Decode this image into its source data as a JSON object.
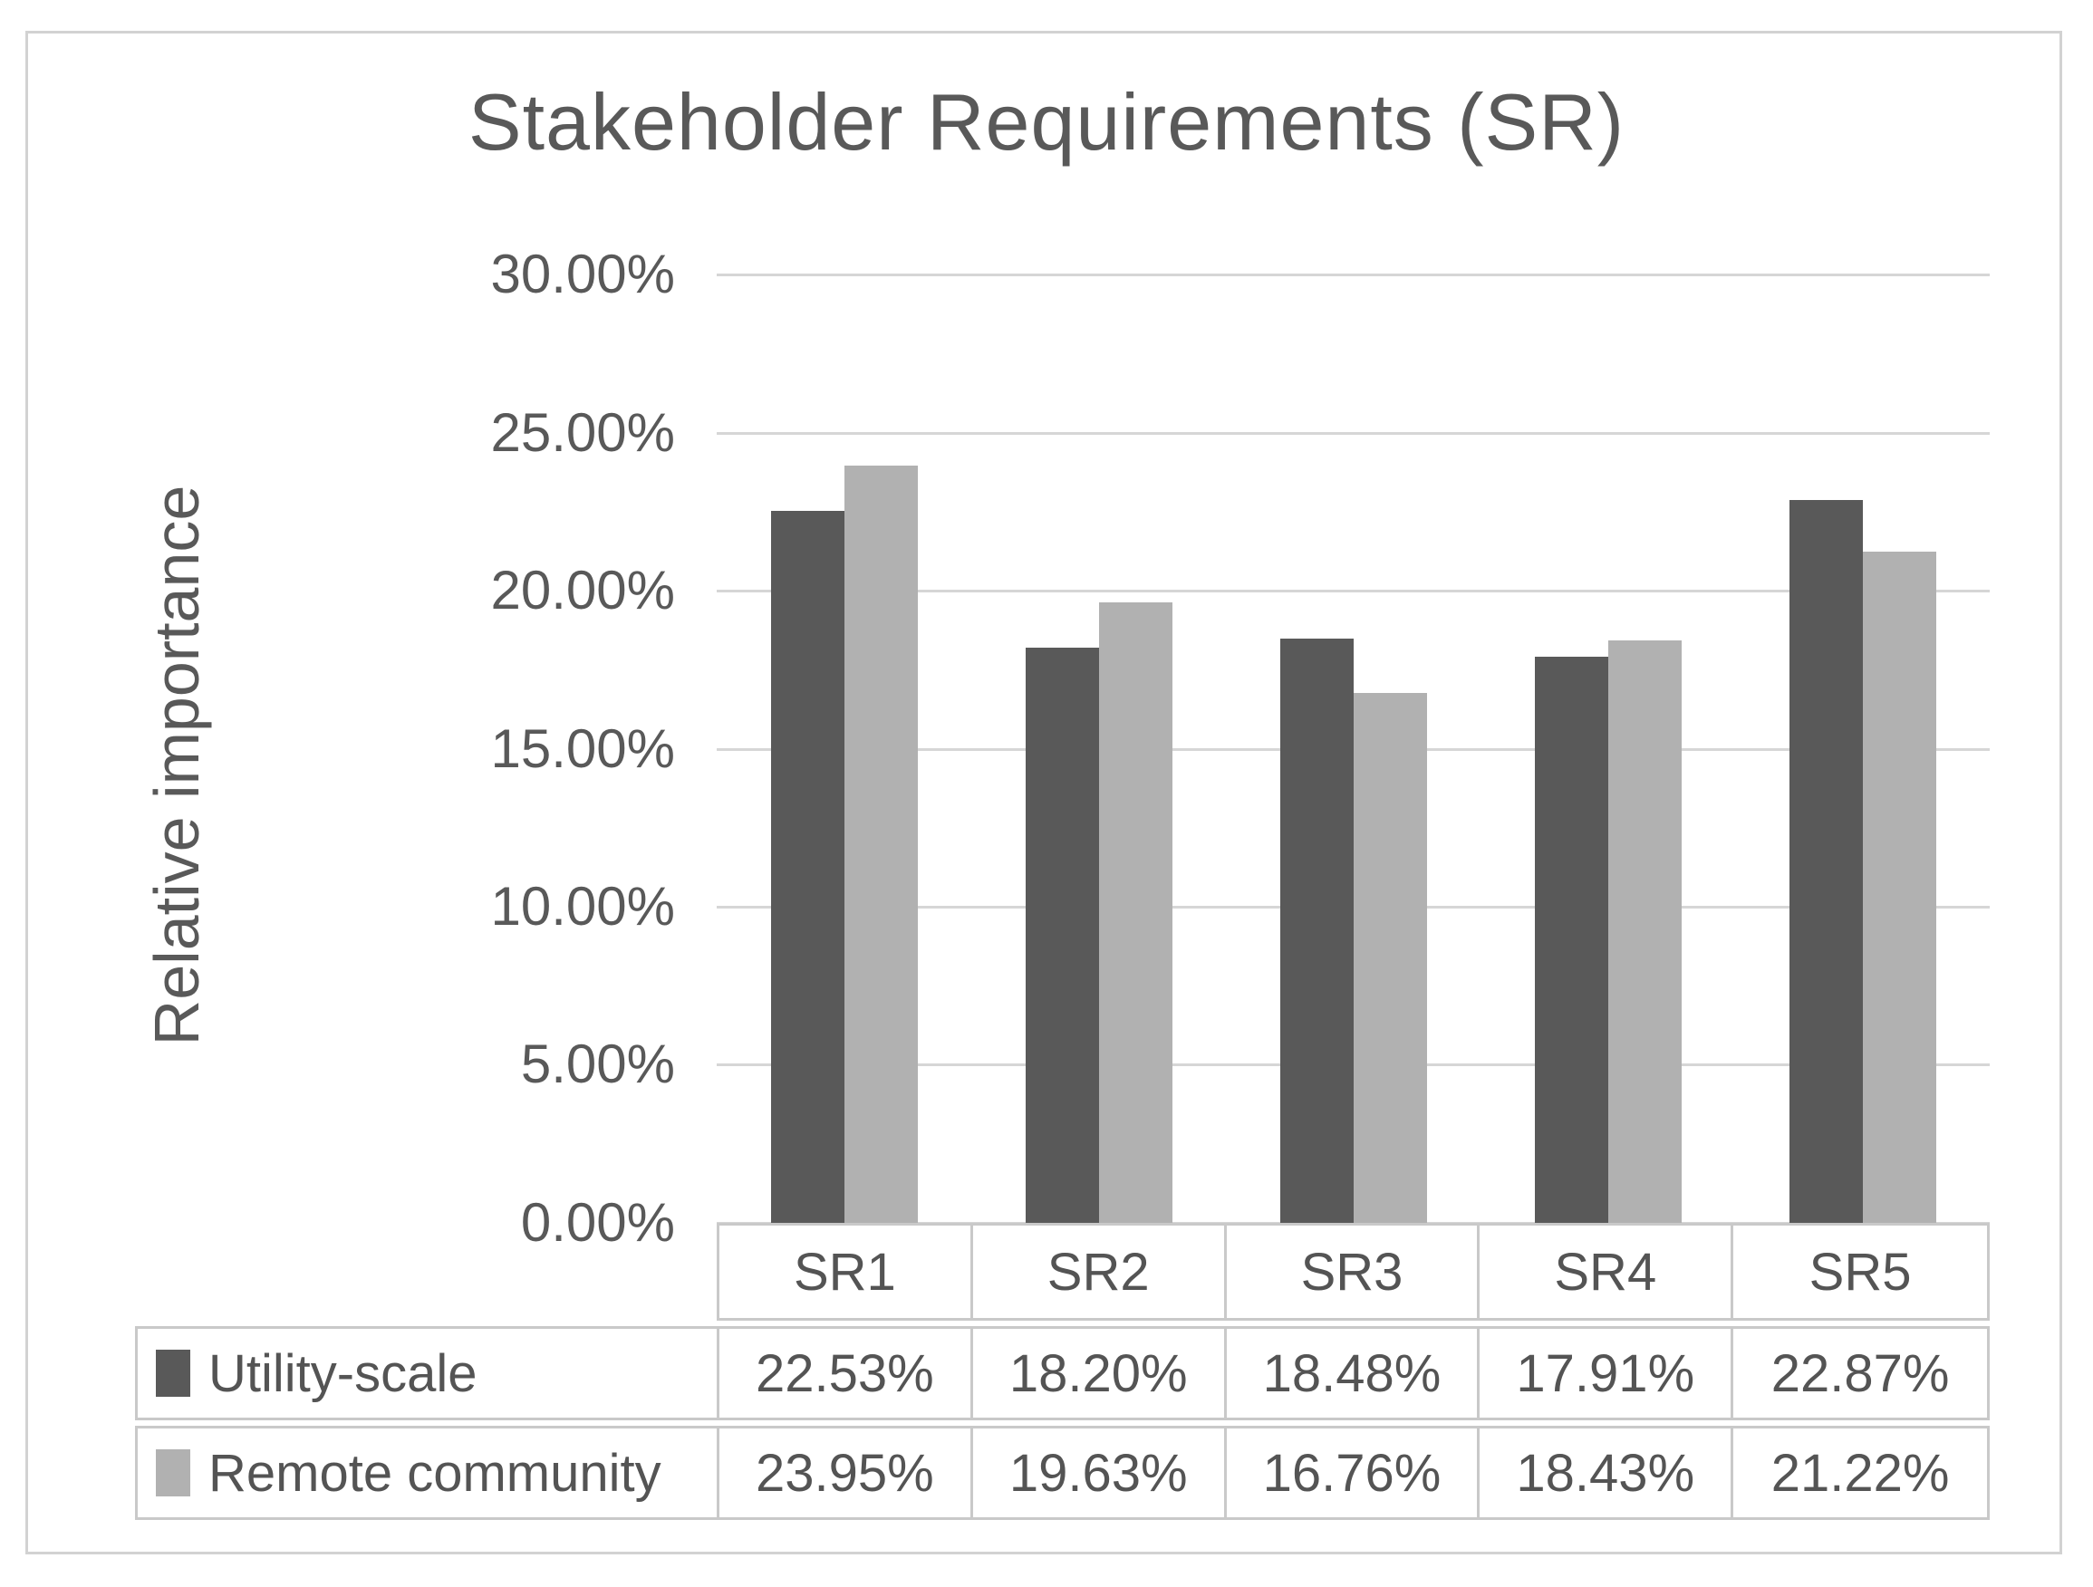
{
  "chart_data": {
    "type": "bar",
    "title": "Stakeholder Requirements (SR)",
    "ylabel": "Relative importance",
    "xlabel": "",
    "categories": [
      "SR1",
      "SR2",
      "SR3",
      "SR4",
      "SR5"
    ],
    "series": [
      {
        "name": "Utility-scale",
        "values": [
          22.53,
          18.2,
          18.48,
          17.91,
          22.87
        ],
        "labels": [
          "22.53%",
          "18.20%",
          "18.48%",
          "17.91%",
          "22.87%"
        ],
        "color": "#595959"
      },
      {
        "name": "Remote community",
        "values": [
          23.95,
          19.63,
          16.76,
          18.43,
          21.22
        ],
        "labels": [
          "23.95%",
          "19.63%",
          "16.76%",
          "18.43%",
          "21.22%"
        ],
        "color": "#b1b1b1"
      }
    ],
    "ylim": [
      0,
      30
    ],
    "yticks": [
      "30.00%",
      "25.00%",
      "20.00%",
      "15.00%",
      "10.00%",
      "5.00%",
      "0.00%"
    ],
    "grid": true,
    "legend_position": "table-left"
  },
  "colors": {
    "gridline": "#d6d6d6",
    "table_border": "#c9c9c9",
    "frame_border": "#d2d2d2",
    "text": "#595959"
  }
}
